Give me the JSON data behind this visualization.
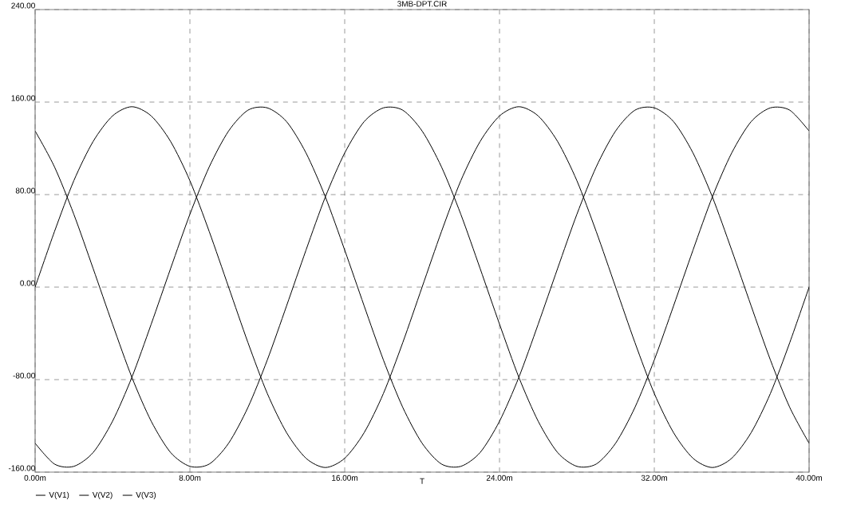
{
  "chart_data": {
    "type": "line",
    "title": "3MB-DPT.CIR",
    "xlabel": "T",
    "x": [
      0,
      1,
      2,
      3,
      4,
      5,
      6,
      7,
      8,
      9,
      10,
      11,
      12,
      13,
      14,
      15,
      16,
      17,
      18,
      19,
      20,
      21,
      22,
      23,
      24,
      25,
      26,
      27,
      28,
      29,
      30,
      31,
      32,
      33,
      34,
      35,
      36,
      37,
      38,
      39,
      40
    ],
    "series": [
      {
        "name": "V(V1)",
        "color": "#000000",
        "values": [
          0,
          48,
          92,
          126,
          148,
          156,
          148,
          126,
          92,
          48,
          0,
          -48,
          -92,
          -126,
          -148,
          -156,
          -148,
          -126,
          -92,
          -48,
          0,
          48,
          92,
          126,
          148,
          156,
          148,
          126,
          92,
          48,
          0,
          -48,
          -92,
          -126,
          -148,
          -156,
          -148,
          -126,
          -92,
          -48,
          0
        ]
      },
      {
        "name": "V(V2)",
        "color": "#000000",
        "values": [
          -135,
          -153,
          -155,
          -143,
          -116,
          -78,
          -32,
          16,
          63,
          104,
          135,
          153,
          155,
          143,
          116,
          78,
          32,
          -16,
          -63,
          -104,
          -135,
          -153,
          -155,
          -143,
          -116,
          -78,
          -32,
          16,
          63,
          104,
          135,
          153,
          155,
          143,
          116,
          78,
          32,
          -16,
          -63,
          -104,
          -135
        ]
      },
      {
        "name": "V(V3)",
        "color": "#000000",
        "values": [
          135,
          104,
          63,
          16,
          -32,
          -78,
          -116,
          -143,
          -155,
          -153,
          -135,
          -104,
          -63,
          -16,
          32,
          78,
          116,
          143,
          155,
          153,
          135,
          104,
          63,
          16,
          -32,
          -78,
          -116,
          -143,
          -155,
          -153,
          -135,
          -104,
          -63,
          -16,
          32,
          78,
          116,
          143,
          155,
          153,
          135
        ]
      }
    ],
    "xlim": [
      0,
      40
    ],
    "xticks": [
      {
        "value": 0,
        "label": "0.00m"
      },
      {
        "value": 8,
        "label": "8.00m"
      },
      {
        "value": 16,
        "label": "16.00m"
      },
      {
        "value": 24,
        "label": "24.00m"
      },
      {
        "value": 32,
        "label": "32.00m"
      },
      {
        "value": 40,
        "label": "40.00m"
      }
    ],
    "ylim": [
      -160,
      240
    ],
    "yticks": [
      {
        "value": -160,
        "label": "-160.00"
      },
      {
        "value": -80,
        "label": "-80.00"
      },
      {
        "value": 0,
        "label": "0.00"
      },
      {
        "value": 80,
        "label": "80.00"
      },
      {
        "value": 160,
        "label": "160.00"
      },
      {
        "value": 240,
        "label": "240.00"
      }
    ],
    "grid": true,
    "legend": "bottom left",
    "line_style": "solid",
    "marker": "none"
  }
}
